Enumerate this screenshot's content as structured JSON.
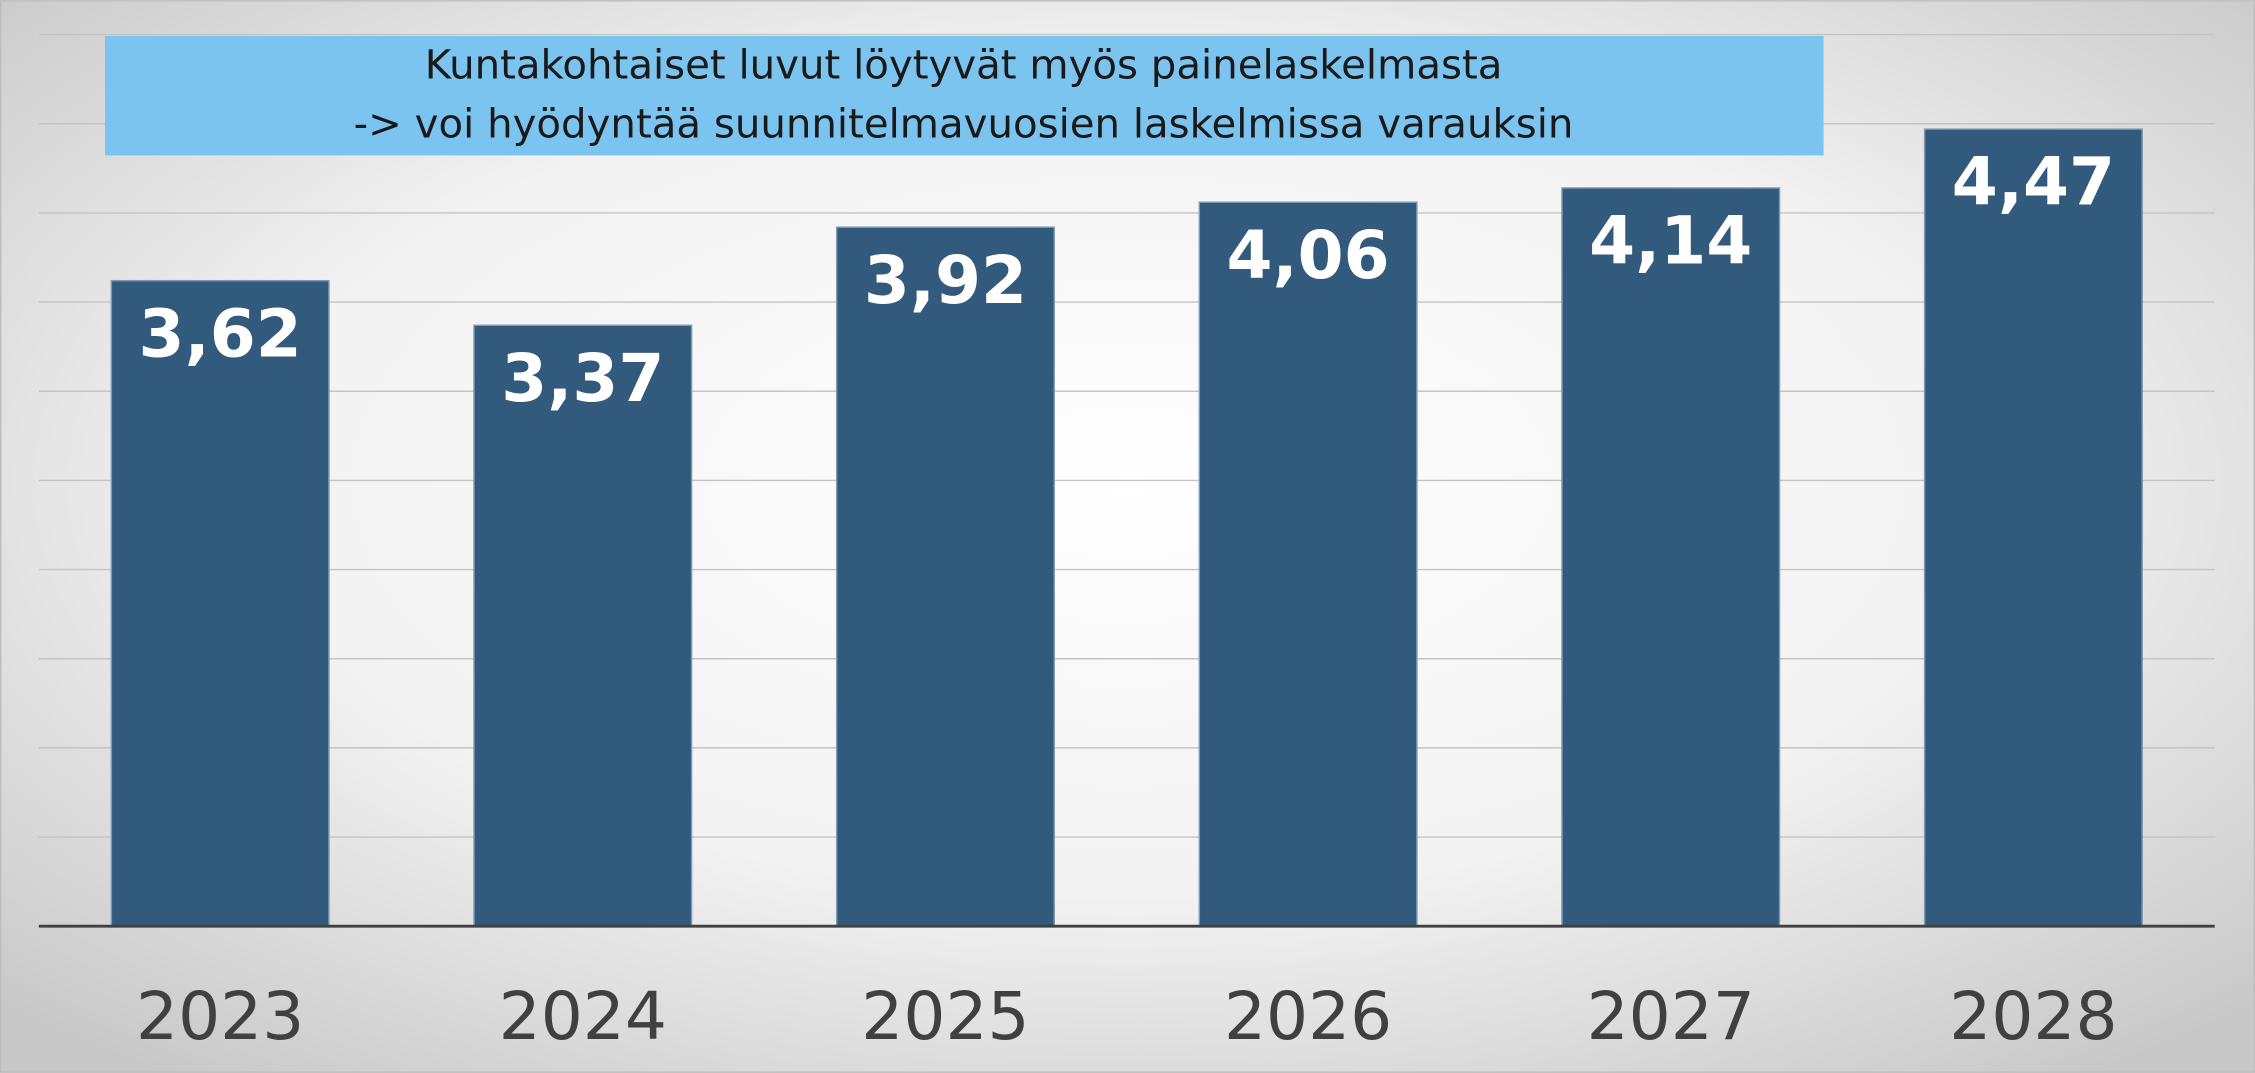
{
  "chart_data": {
    "type": "bar",
    "annotation": [
      "Kuntakohtaiset luvut löytyvät myös painelaskelmasta",
      "-> voi hyödyntää suunnitelmavuosien laskelmissa varauksin"
    ],
    "categories": [
      "2023",
      "2024",
      "2025",
      "2026",
      "2027",
      "2028"
    ],
    "values": [
      3.62,
      3.37,
      3.92,
      4.06,
      4.14,
      4.47
    ],
    "value_labels": [
      "3,62",
      "3,37",
      "3,92",
      "4,06",
      "4,14",
      "4,47"
    ],
    "color": "#325a7c",
    "ylim": [
      0,
      5
    ],
    "yticks": [
      0,
      0.5,
      1,
      1.5,
      2,
      2.5,
      3,
      3.5,
      4,
      4.5,
      5
    ],
    "grid": true
  }
}
